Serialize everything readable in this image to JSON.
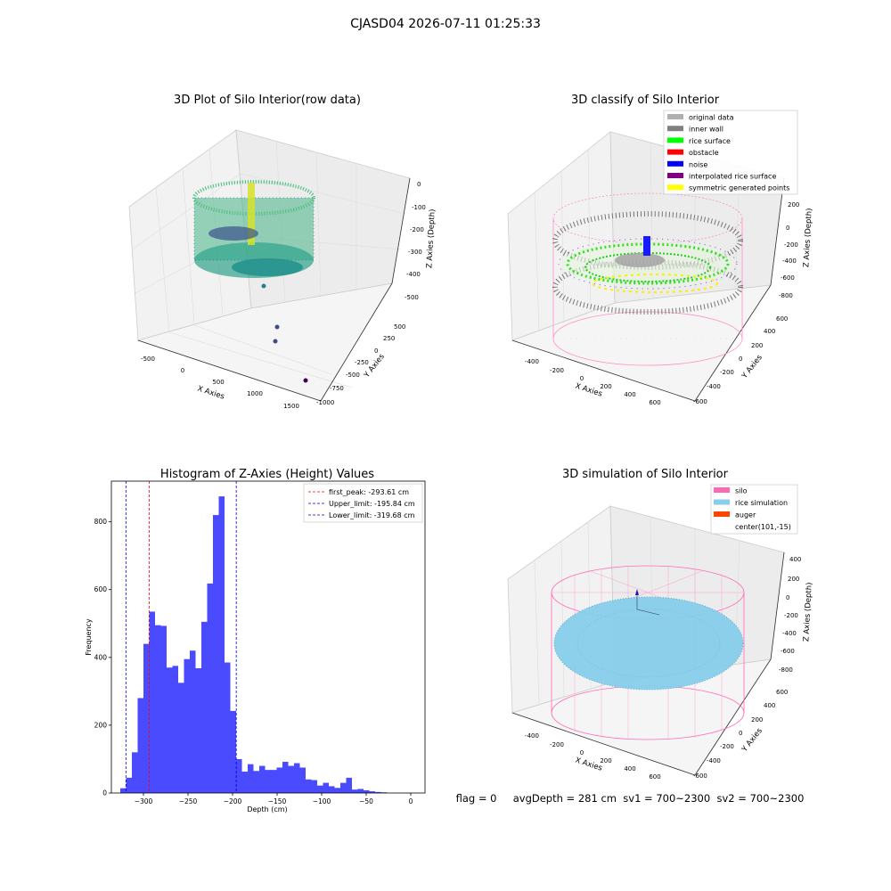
{
  "suptitle": "CJASD04 2026-07-11 01:25:33",
  "panels": {
    "raw": {
      "title": "3D Plot of Silo Interior(row data)",
      "xlabel": "X Axies",
      "ylabel": "Y Axies",
      "zlabel": "Z Axies (Depth)",
      "xticks": [
        "-500",
        "0",
        "500",
        "1000",
        "1500"
      ],
      "yticks": [
        "500",
        "250",
        "0",
        "-250",
        "-500",
        "-750",
        "-1000"
      ],
      "zticks": [
        "0",
        "-100",
        "-200",
        "-300",
        "-400",
        "-500"
      ]
    },
    "classify": {
      "title": "3D classify of Silo Interior",
      "xlabel": "X Axies",
      "ylabel": "Y Axies",
      "zlabel": "Z Axies (Depth)",
      "xticks": [
        "-400",
        "-200",
        "0",
        "200",
        "400",
        "600"
      ],
      "yticks": [
        "600",
        "400",
        "200",
        "0",
        "-200",
        "-400",
        "-600"
      ],
      "zticks": [
        "200",
        "0",
        "-200",
        "-400",
        "-600",
        "-800"
      ],
      "legend": [
        {
          "label": "original data",
          "color": "#b0b0b0"
        },
        {
          "label": "inner wall",
          "color": "#808080"
        },
        {
          "label": "rice surface",
          "color": "#00ff00"
        },
        {
          "label": "obstacle",
          "color": "#ff0000"
        },
        {
          "label": "noise",
          "color": "#0000ff"
        },
        {
          "label": "interpolated rice surface",
          "color": "#800080"
        },
        {
          "label": "symmetric generated points",
          "color": "#ffff00"
        }
      ]
    },
    "simulation": {
      "title": "3D simulation of Silo Interior",
      "xlabel": "X Axies",
      "ylabel": "Y Axies",
      "zlabel": "Z Axies (Depth)",
      "xticks": [
        "-400",
        "-200",
        "0",
        "200",
        "400",
        "600"
      ],
      "yticks": [
        "600",
        "400",
        "200",
        "0",
        "-200",
        "-400",
        "-600"
      ],
      "zticks": [
        "400",
        "200",
        "0",
        "-200",
        "-400",
        "-600",
        "-800"
      ],
      "legend": [
        {
          "label": "silo",
          "color": "#ff69b4"
        },
        {
          "label": "rice simulation",
          "color": "#87ceeb"
        },
        {
          "label": "auger",
          "color": "#ff4500"
        },
        {
          "label": "center(101,-15)",
          "color": ""
        }
      ]
    }
  },
  "status_text": "flag = 0     avgDepth = 281 cm  sv1 = 700~2300  sv2 = 700~2300",
  "chart_data": [
    {
      "type": "bar",
      "title": "Histogram of Z-Axies (Height) Values",
      "xlabel": "Depth (cm)",
      "ylabel": "Frequency",
      "xlim": [
        -336,
        16
      ],
      "ylim": [
        0,
        920
      ],
      "xticks": [
        -300,
        -250,
        -200,
        -150,
        -100,
        -50,
        0
      ],
      "xtick_labels": [
        "−300",
        "−250",
        "−200",
        "−150",
        "−100",
        "−50",
        "0"
      ],
      "yticks": [
        0,
        200,
        400,
        600,
        800
      ],
      "bin_start": -326,
      "bin_width": 6.5,
      "color": "#4a4aff",
      "values": [
        14,
        45,
        120,
        280,
        440,
        535,
        495,
        493,
        370,
        375,
        325,
        395,
        420,
        368,
        505,
        618,
        820,
        875,
        385,
        242,
        100,
        63,
        85,
        65,
        80,
        68,
        68,
        75,
        92,
        80,
        88,
        75,
        40,
        38,
        22,
        30,
        20,
        15,
        30,
        45,
        10,
        12,
        8,
        5,
        3,
        2
      ],
      "vlines": [
        {
          "label": "first_peak: -293.61 cm",
          "x": -293.61,
          "color": "#ff0000"
        },
        {
          "label": "Upper_limit: -195.84 cm",
          "x": -195.84,
          "color": "#0000cc"
        },
        {
          "label": "Lower_limit: -319.68 cm",
          "x": -319.68,
          "color": "#0000cc"
        }
      ],
      "legend_position": "top-right"
    }
  ]
}
